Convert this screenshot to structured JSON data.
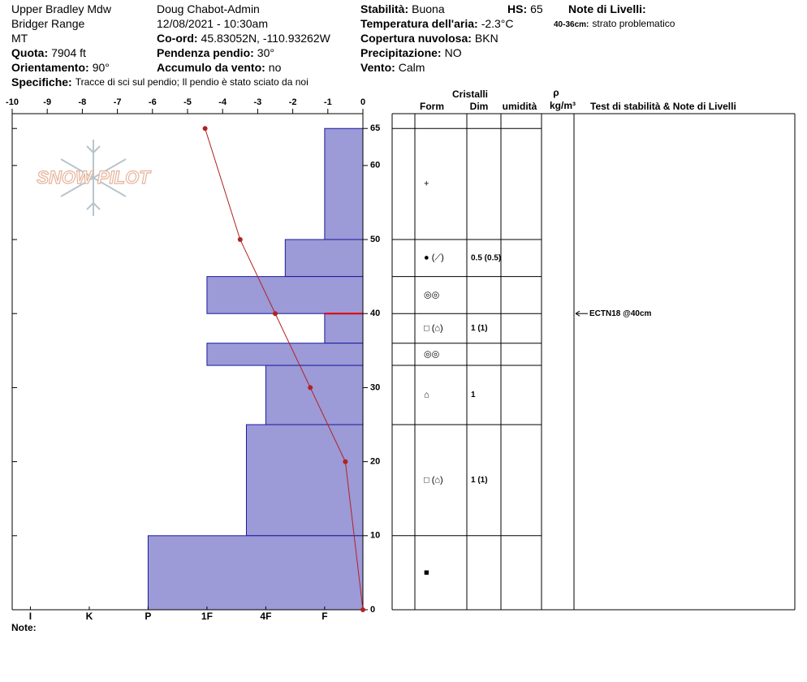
{
  "header": {
    "items": [
      {
        "text": "Upper Bradley Mdw"
      },
      {
        "text": "Bridger Range"
      },
      {
        "text": "MT"
      },
      {
        "label": "Quota:",
        "value": "7904 ft"
      },
      {
        "label": "Orientamento:",
        "value": "90°"
      },
      {
        "label": "Specifiche:",
        "value": "Tracce di sci sul pendio;  Il pendio è stato sciato da noi"
      },
      {
        "text": "Doug Chabot-Admin"
      },
      {
        "text": "12/08/2021 - 10:30am"
      },
      {
        "label": "Co-ord:",
        "value": "45.83052N, -110.93262W"
      },
      {
        "label": "Pendenza pendio:",
        "value": "30°"
      },
      {
        "label": "Accumulo da vento:",
        "value": "no"
      },
      {
        "label": "Stabilità:",
        "value": "Buona"
      },
      {
        "label": "HS:",
        "value": "65"
      },
      {
        "label": "Temperatura dell'aria:",
        "value": "-2.3°C"
      },
      {
        "label": "Copertura nuvolosa:",
        "value": "BKN"
      },
      {
        "label": "Precipitazione:",
        "value": "NO"
      },
      {
        "label": "Vento:",
        "value": "Calm"
      },
      {
        "label": "Note di Livelli:"
      },
      {
        "label": "40-36cm:",
        "value": "strato problematico"
      }
    ]
  },
  "chart_data": {
    "type": "snow-profile",
    "logo": "SNOW PILOT",
    "xlim": [
      -10,
      0
    ],
    "xticks": [
      -10,
      -9,
      -8,
      -7,
      -6,
      -5,
      -4,
      -3,
      -2,
      -1,
      0
    ],
    "ylim": [
      0,
      67
    ],
    "yticks": [
      0,
      10,
      20,
      30,
      40,
      50,
      60,
      65
    ],
    "hardness_lim": [
      0.35,
      6.31
    ],
    "hardness_ticks": [
      {
        "value": 6,
        "label": "I"
      },
      {
        "value": 5,
        "label": "K"
      },
      {
        "value": 4,
        "label": "P"
      },
      {
        "value": 3,
        "label": "1F"
      },
      {
        "value": 2,
        "label": "4F"
      },
      {
        "value": 1,
        "label": "F"
      }
    ],
    "layers": {
      "color": "#9c9ad7",
      "top": [
        65,
        50,
        45,
        40,
        36,
        33,
        25,
        10
      ],
      "bottom": [
        50,
        45,
        40,
        36,
        33,
        25,
        10,
        0
      ],
      "hardness": [
        1,
        1.67,
        3,
        1,
        3,
        2,
        2.33,
        4
      ],
      "grain_form": [
        "+",
        "● (⟋)",
        "◎◎",
        "□ (⌂)",
        "◎◎",
        "⌂",
        "□ (⌂)",
        "■"
      ],
      "grain_size": [
        null,
        "0.5 (0.5)",
        null,
        "1 (1)",
        null,
        "1",
        "1 (1)",
        null
      ]
    },
    "temperature": {
      "color": "#b22222",
      "depth": [
        65,
        50,
        40,
        30,
        20,
        0
      ],
      "values": [
        -4.5,
        -3.5,
        -2.5,
        -1.5,
        -0.5,
        0
      ]
    },
    "weak_layer": 40,
    "tests": [
      {
        "text": "ECTN18 @40cm",
        "height": 40
      }
    ]
  },
  "table": {
    "group_header": "Cristalli",
    "headers": [
      "Form",
      "Dim",
      "umidità",
      "ρ",
      "Test di stabilità & Note di Livelli"
    ],
    "density_unit": "kg/m³"
  },
  "note_label": "Note:"
}
